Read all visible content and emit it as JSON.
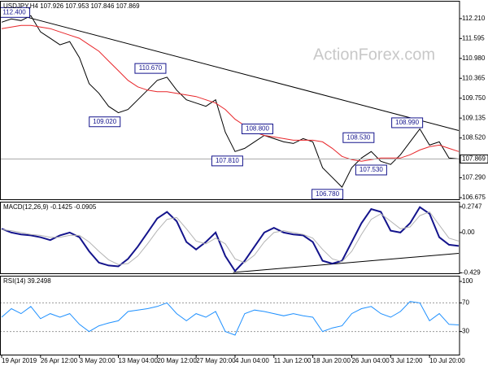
{
  "chart_data": [
    {
      "type": "line",
      "title": "USDJPY,H4 107.926 107.953 107.846 107.869",
      "watermark": "ActionForex.com",
      "xlim": [
        0,
        47
      ],
      "ylim": [
        106.6,
        112.76
      ],
      "yticks": [
        {
          "value": 112.21,
          "label": "112.210"
        },
        111.595,
        {
          "value": 110.98,
          "label": "110.980"
        },
        110.365,
        {
          "value": 109.75,
          "label": "109.750"
        },
        109.135,
        {
          "value": 108.52,
          "label": "108.520"
        },
        {
          "value": 107.29,
          "label": "107.290"
        },
        106.675
      ],
      "current": 107.869,
      "series": [
        {
          "name": "Price",
          "color": "#000000",
          "values": [
            112.1,
            112.2,
            112.15,
            112.3,
            111.8,
            111.6,
            111.4,
            111.5,
            111.0,
            110.2,
            109.9,
            109.5,
            109.3,
            109.4,
            109.7,
            110.0,
            110.3,
            110.4,
            110.0,
            109.7,
            109.6,
            109.5,
            109.7,
            108.7,
            108.1,
            108.2,
            108.4,
            108.6,
            108.5,
            108.4,
            108.35,
            108.5,
            108.4,
            107.6,
            107.3,
            107.0,
            107.6,
            107.9,
            108.1,
            107.8,
            107.7,
            108.0,
            108.4,
            108.8,
            108.3,
            108.4,
            107.9,
            107.869
          ]
        },
        {
          "name": "MA",
          "color": "#e8262a",
          "values": [
            111.9,
            111.95,
            112.0,
            112.0,
            111.95,
            111.9,
            111.8,
            111.7,
            111.6,
            111.4,
            111.2,
            110.9,
            110.6,
            110.3,
            110.1,
            110.0,
            109.95,
            109.95,
            109.9,
            109.85,
            109.8,
            109.7,
            109.6,
            109.4,
            109.1,
            108.9,
            108.7,
            108.6,
            108.55,
            108.5,
            108.45,
            108.45,
            108.45,
            108.4,
            108.2,
            107.95,
            107.85,
            107.8,
            107.85,
            107.9,
            107.9,
            107.9,
            108.0,
            108.15,
            108.25,
            108.3,
            108.2,
            108.1
          ]
        }
      ],
      "trendline": {
        "x": [
          0,
          47
        ],
        "values": [
          112.46,
          108.75
        ]
      },
      "annotations": [
        {
          "label": "112.400",
          "value": 112.4,
          "x": 1.3
        },
        {
          "label": "110.670",
          "value": 110.67,
          "x": 15.3
        },
        {
          "label": "109.020",
          "value": 109.02,
          "x": 10.6
        },
        {
          "label": "108.800",
          "value": 108.8,
          "x": 26.3
        },
        {
          "label": "107.810",
          "value": 107.81,
          "x": 23.2
        },
        {
          "label": "108.530",
          "value": 108.53,
          "x": 36.7
        },
        {
          "label": "108.990",
          "value": 108.99,
          "x": 41.7
        },
        {
          "label": "107.530",
          "value": 107.53,
          "x": 38
        },
        {
          "label": "106.780",
          "value": 106.78,
          "x": 33.5
        }
      ]
    },
    {
      "type": "macd",
      "title": "MACD(12,26,9) -0.1425 -0.0905",
      "xlim": [
        0,
        47
      ],
      "ylim": [
        -0.442,
        0.328
      ],
      "yticks": [
        0.2747,
        {
          "value": 0,
          "label": "0.00"
        },
        -0.429
      ],
      "series": [
        {
          "name": "MACD",
          "color": "#14148c",
          "values": [
            0.04,
            0.0,
            -0.02,
            -0.03,
            -0.05,
            -0.08,
            -0.03,
            0.0,
            -0.05,
            -0.2,
            -0.32,
            -0.35,
            -0.36,
            -0.28,
            -0.15,
            0.0,
            0.15,
            0.22,
            0.12,
            -0.1,
            -0.18,
            -0.1,
            0.0,
            -0.25,
            -0.41,
            -0.3,
            -0.15,
            0.0,
            0.05,
            0.0,
            -0.02,
            -0.03,
            -0.1,
            -0.3,
            -0.33,
            -0.3,
            -0.1,
            0.1,
            0.25,
            0.22,
            0.02,
            0.0,
            0.1,
            0.27,
            0.2,
            -0.05,
            -0.13,
            -0.1425
          ]
        },
        {
          "name": "Signal",
          "color": "#b4b4b4",
          "values": [
            0.03,
            0.02,
            0.0,
            -0.02,
            -0.03,
            -0.05,
            -0.05,
            -0.03,
            -0.03,
            -0.1,
            -0.2,
            -0.29,
            -0.34,
            -0.33,
            -0.25,
            -0.12,
            0.02,
            0.14,
            0.16,
            0.04,
            -0.09,
            -0.12,
            -0.06,
            -0.12,
            -0.28,
            -0.32,
            -0.24,
            -0.1,
            0.0,
            0.02,
            0.0,
            -0.02,
            -0.06,
            -0.18,
            -0.28,
            -0.31,
            -0.2,
            -0.02,
            0.14,
            0.2,
            0.12,
            0.04,
            0.06,
            0.18,
            0.22,
            0.08,
            -0.06,
            -0.0905
          ]
        }
      ],
      "trendline": {
        "x": [
          23.8,
          47
        ],
        "values": [
          -0.425,
          -0.221
        ]
      }
    },
    {
      "type": "rsi",
      "title": "RSI(14) 39.2498",
      "xlim": [
        0,
        47
      ],
      "ylim": [
        -3.4,
        108
      ],
      "yticks": [
        100,
        70,
        30
      ],
      "levels": [
        70,
        30
      ],
      "series": [
        {
          "name": "RSI",
          "color": "#1e90ff",
          "values": [
            50,
            62,
            55,
            65,
            48,
            55,
            50,
            55,
            40,
            30,
            38,
            42,
            45,
            58,
            60,
            62,
            65,
            70,
            55,
            45,
            55,
            50,
            58,
            30,
            25,
            55,
            60,
            58,
            55,
            52,
            55,
            52,
            50,
            30,
            35,
            38,
            55,
            62,
            65,
            55,
            50,
            58,
            72,
            70,
            45,
            55,
            40,
            39.2498
          ]
        }
      ],
      "xticks": [
        {
          "value": 0,
          "label": "19 Apr 2019"
        },
        {
          "value": 4,
          "label": "26 Apr 12:00"
        },
        {
          "value": 8,
          "label": "3 May 20:00"
        },
        {
          "value": 12,
          "label": "13 May 04:00"
        },
        {
          "value": 16,
          "label": "20 May 12:00"
        },
        {
          "value": 20,
          "label": "27 May 20:00"
        },
        {
          "value": 24,
          "label": "4 Jun 04:00"
        },
        {
          "value": 28,
          "label": "11 Jun 12:00"
        },
        {
          "value": 32,
          "label": "18 Jun 20:00"
        },
        {
          "value": 36,
          "label": "26 Jun 04:00"
        },
        {
          "value": 40,
          "label": "3 Jul 12:00"
        },
        {
          "value": 44,
          "label": "10 Jul 20:00"
        }
      ]
    }
  ]
}
